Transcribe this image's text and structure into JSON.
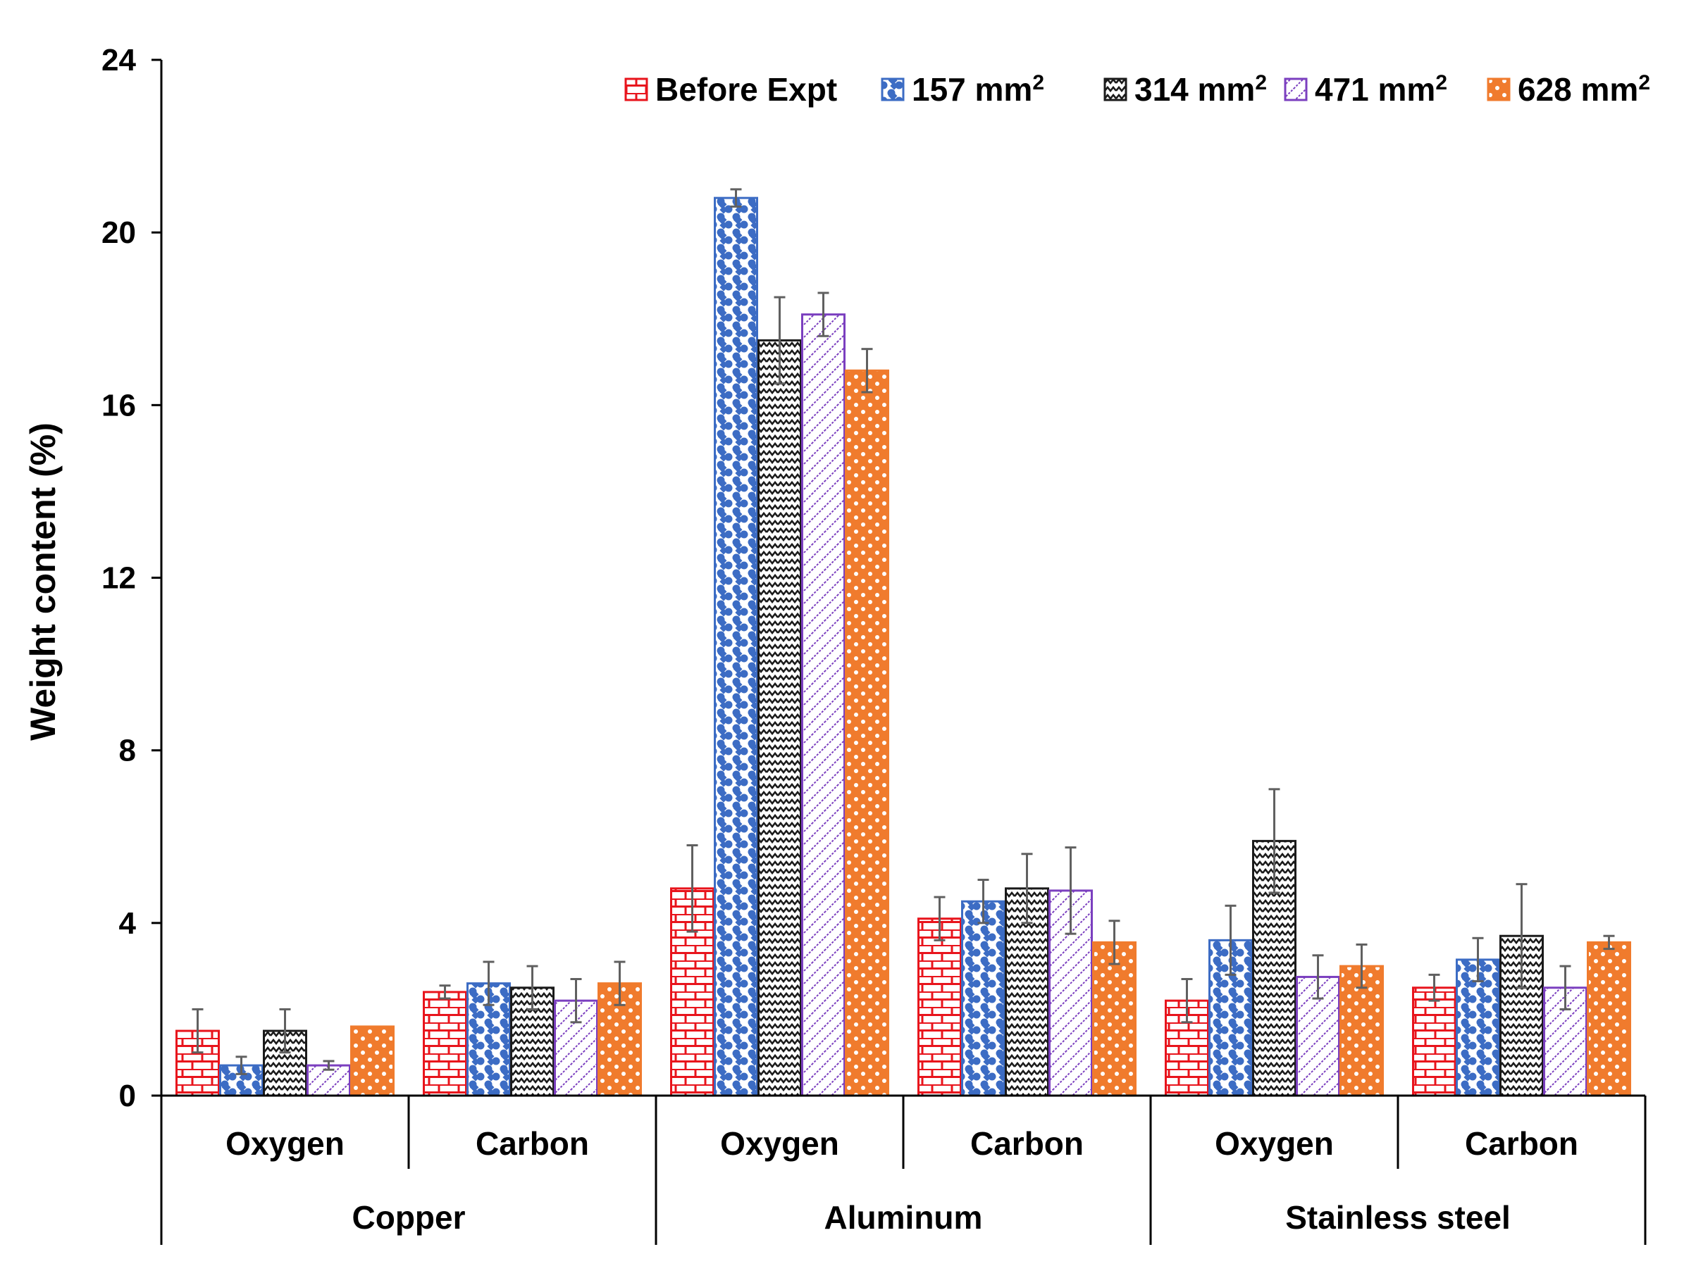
{
  "chart_data": {
    "type": "bar",
    "title": "",
    "ylabel": "Weight content  (%)",
    "xlabel": "",
    "ylim": [
      0,
      24
    ],
    "yticks": [
      0,
      4,
      8,
      12,
      16,
      20,
      24
    ],
    "grid": false,
    "legend_position": "top-right",
    "groups": [
      {
        "name": "Copper",
        "categories": [
          "Oxygen",
          "Carbon"
        ]
      },
      {
        "name": "Aluminum",
        "categories": [
          "Oxygen",
          "Carbon"
        ]
      },
      {
        "name": "Stainless steel",
        "categories": [
          "Oxygen",
          "Carbon"
        ]
      }
    ],
    "categories": [
      "Copper Oxygen",
      "Copper Carbon",
      "Aluminum Oxygen",
      "Aluminum Carbon",
      "Stainless steel Oxygen",
      "Stainless steel Carbon"
    ],
    "series": [
      {
        "name": "Before Expt",
        "label_main": "Before Expt",
        "label_sup": "",
        "color": "#e8141c",
        "pattern": "brick",
        "values": [
          1.5,
          2.4,
          4.8,
          4.1,
          2.2,
          2.5
        ],
        "errors": [
          0.5,
          0.15,
          1.0,
          0.5,
          0.5,
          0.3
        ]
      },
      {
        "name": "157 mm²",
        "label_main": "157 mm",
        "label_sup": "2",
        "color": "#3c6cc4",
        "pattern": "dots",
        "values": [
          0.7,
          2.6,
          20.8,
          4.5,
          3.6,
          3.15
        ],
        "errors": [
          0.2,
          0.5,
          0.2,
          0.5,
          0.8,
          0.5
        ]
      },
      {
        "name": "314 mm²",
        "label_main": "314 mm",
        "label_sup": "2",
        "color": "#1a1a1a",
        "pattern": "wave",
        "values": [
          1.5,
          2.5,
          17.5,
          4.8,
          5.9,
          3.7
        ],
        "errors": [
          0.5,
          0.5,
          1.0,
          0.8,
          1.2,
          1.2
        ]
      },
      {
        "name": "471 mm²",
        "label_main": "471 mm",
        "label_sup": "2",
        "color": "#7b3fbf",
        "pattern": "diag",
        "values": [
          0.7,
          2.2,
          18.1,
          4.75,
          2.75,
          2.5
        ],
        "errors": [
          0.1,
          0.5,
          0.5,
          1.0,
          0.5,
          0.5
        ]
      },
      {
        "name": "628 mm²",
        "label_main": "628 mm",
        "label_sup": "2",
        "color": "#f07b2d",
        "pattern": "holes",
        "values": [
          1.6,
          2.6,
          16.8,
          3.55,
          3.0,
          3.55
        ],
        "errors": [
          0.0,
          0.5,
          0.5,
          0.5,
          0.5,
          0.15
        ]
      }
    ]
  }
}
